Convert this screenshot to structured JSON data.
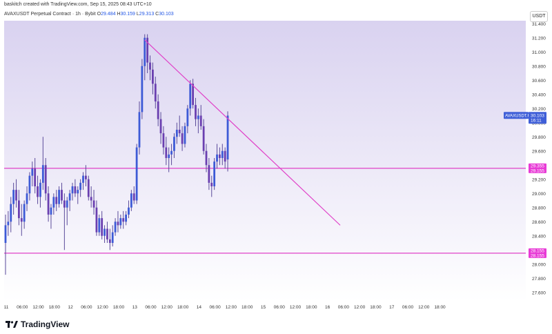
{
  "header": {
    "credit": "baskitch created with TradingView.com, Sep 15, 2025 08:43 UTC+10",
    "symbol": "AVAXUSDT Perpetual Contract · 1h · Bybit",
    "o_label": "O",
    "o_value": "29.484",
    "h_label": "H",
    "h_value": "30.159",
    "l_label": "L",
    "l_value": "29.313",
    "c_label": "C",
    "c_value": "30.103",
    "currency_button": "USDT"
  },
  "footer": {
    "logo_text": "TradingView",
    "logo_icon": "tradingview-logo-icon"
  },
  "colors": {
    "background_top": "#d9d2f0",
    "background_bottom": "#ffffff",
    "candle": "#3d5ad6",
    "wick": "#5a4a9a",
    "line": "#e040c8",
    "badge": "#e83ad6",
    "price_badge": "#3f5fd8"
  },
  "chart_data": {
    "type": "candlestick",
    "y_axis_side": "right",
    "ylim": [
      27.5,
      31.6
    ],
    "y_ticks": [
      "31.400",
      "31.200",
      "31.000",
      "30.800",
      "30.600",
      "30.400",
      "30.200",
      "30.000",
      "29.800",
      "29.600",
      "29.400",
      "29.200",
      "29.000",
      "28.800",
      "28.600",
      "28.400",
      "28.200",
      "28.000",
      "27.800",
      "27.600"
    ],
    "x_ticks": [
      "11",
      "06:00",
      "12:00",
      "18:00",
      "12",
      "06:00",
      "12:00",
      "18:00",
      "13",
      "06:00",
      "12:00",
      "18:00",
      "14",
      "06:00",
      "12:00",
      "18:00",
      "15",
      "06:00",
      "12:00",
      "18:00",
      "16",
      "06:00",
      "12:00",
      "18:00",
      "17",
      "06:00",
      "12:00",
      "18:00"
    ],
    "candles_ohlc": [
      [
        28.3,
        28.7,
        27.85,
        28.55
      ],
      [
        28.55,
        28.75,
        28.4,
        28.6
      ],
      [
        28.6,
        28.95,
        28.45,
        28.85
      ],
      [
        28.85,
        29.15,
        28.7,
        29.05
      ],
      [
        29.05,
        29.2,
        28.8,
        28.9
      ],
      [
        28.9,
        29.05,
        28.55,
        28.65
      ],
      [
        28.65,
        28.85,
        28.4,
        28.6
      ],
      [
        28.6,
        28.9,
        28.5,
        28.85
      ],
      [
        28.85,
        29.1,
        28.75,
        29.0
      ],
      [
        29.0,
        29.3,
        28.9,
        29.25
      ],
      [
        29.25,
        29.45,
        29.1,
        29.35
      ],
      [
        29.35,
        29.5,
        29.0,
        29.1
      ],
      [
        29.1,
        29.25,
        28.85,
        28.95
      ],
      [
        28.95,
        29.2,
        28.8,
        29.15
      ],
      [
        29.15,
        29.8,
        29.05,
        29.4
      ],
      [
        29.4,
        29.5,
        28.9,
        29.0
      ],
      [
        29.0,
        29.1,
        28.6,
        28.7
      ],
      [
        28.7,
        28.85,
        28.5,
        28.8
      ],
      [
        28.8,
        29.0,
        28.7,
        28.95
      ],
      [
        28.95,
        29.05,
        28.75,
        28.85
      ],
      [
        28.85,
        29.1,
        28.8,
        29.05
      ],
      [
        29.05,
        29.15,
        28.85,
        28.9
      ],
      [
        28.9,
        29.0,
        28.2,
        28.8
      ],
      [
        28.8,
        28.95,
        28.55,
        28.9
      ],
      [
        28.9,
        29.05,
        28.75,
        29.0
      ],
      [
        29.0,
        29.15,
        28.9,
        29.1
      ],
      [
        29.1,
        29.2,
        28.95,
        29.0
      ],
      [
        29.0,
        29.1,
        28.85,
        29.05
      ],
      [
        29.05,
        29.2,
        28.95,
        29.15
      ],
      [
        29.15,
        29.3,
        29.05,
        29.25
      ],
      [
        29.25,
        29.4,
        29.1,
        29.2
      ],
      [
        29.2,
        29.25,
        28.9,
        28.95
      ],
      [
        28.95,
        29.1,
        28.8,
        28.9
      ],
      [
        28.9,
        29.05,
        28.7,
        28.8
      ],
      [
        28.8,
        28.9,
        28.4,
        28.45
      ],
      [
        28.45,
        28.7,
        28.4,
        28.65
      ],
      [
        28.65,
        28.75,
        28.35,
        28.4
      ],
      [
        28.4,
        28.55,
        28.3,
        28.5
      ],
      [
        28.5,
        28.6,
        28.3,
        28.35
      ],
      [
        28.35,
        28.5,
        28.2,
        28.3
      ],
      [
        28.3,
        28.55,
        28.25,
        28.45
      ],
      [
        28.45,
        28.65,
        28.4,
        28.6
      ],
      [
        28.6,
        28.75,
        28.45,
        28.55
      ],
      [
        28.55,
        28.7,
        28.5,
        28.65
      ],
      [
        28.65,
        28.75,
        28.5,
        28.6
      ],
      [
        28.6,
        28.75,
        28.55,
        28.7
      ],
      [
        28.7,
        28.9,
        28.65,
        28.8
      ],
      [
        28.8,
        29.05,
        28.75,
        29.0
      ],
      [
        29.0,
        29.1,
        28.85,
        28.9
      ],
      [
        28.9,
        29.7,
        28.85,
        29.65
      ],
      [
        29.65,
        30.3,
        29.55,
        30.15
      ],
      [
        30.15,
        30.9,
        30.05,
        30.8
      ],
      [
        30.8,
        31.25,
        30.6,
        31.2
      ],
      [
        31.2,
        31.25,
        30.7,
        30.85
      ],
      [
        30.85,
        30.95,
        30.6,
        30.75
      ],
      [
        30.75,
        30.85,
        30.4,
        30.55
      ],
      [
        30.55,
        30.65,
        30.2,
        30.3
      ],
      [
        30.3,
        30.4,
        29.95,
        30.05
      ],
      [
        30.05,
        30.15,
        29.7,
        29.85
      ],
      [
        29.85,
        29.95,
        29.55,
        29.65
      ],
      [
        29.65,
        29.8,
        29.4,
        29.5
      ],
      [
        29.5,
        29.65,
        29.3,
        29.55
      ],
      [
        29.55,
        29.7,
        29.4,
        29.6
      ],
      [
        29.6,
        29.85,
        29.5,
        29.8
      ],
      [
        29.8,
        30.0,
        29.7,
        29.9
      ],
      [
        29.9,
        30.1,
        29.8,
        29.85
      ],
      [
        29.85,
        29.95,
        29.6,
        29.7
      ],
      [
        29.7,
        30.0,
        29.65,
        29.95
      ],
      [
        29.95,
        30.25,
        29.85,
        30.2
      ],
      [
        30.2,
        30.6,
        30.1,
        30.55
      ],
      [
        30.55,
        30.62,
        30.2,
        30.25
      ],
      [
        30.25,
        30.35,
        29.95,
        30.05
      ],
      [
        30.05,
        30.2,
        29.85,
        30.1
      ],
      [
        30.1,
        30.25,
        29.9,
        29.95
      ],
      [
        29.95,
        30.05,
        29.55,
        29.6
      ],
      [
        29.6,
        29.7,
        29.3,
        29.4
      ],
      [
        29.4,
        29.5,
        29.05,
        29.15
      ],
      [
        29.15,
        29.25,
        28.95,
        29.1
      ],
      [
        29.1,
        29.5,
        29.05,
        29.45
      ],
      [
        29.45,
        29.7,
        29.35,
        29.55
      ],
      [
        29.55,
        29.65,
        29.4,
        29.5
      ],
      [
        29.5,
        29.7,
        29.4,
        29.6
      ],
      [
        29.6,
        29.65,
        29.35,
        29.45
      ],
      [
        29.48,
        30.16,
        29.31,
        30.1
      ]
    ],
    "trendline": {
      "start_index": 52,
      "start_price": 31.17,
      "end_index": 125,
      "end_price": 28.55
    },
    "horizontal_levels": [
      29.355,
      28.155
    ],
    "level_badges": [
      {
        "top": "29.355",
        "bottom": "29.155"
      },
      {
        "top": "28.155",
        "bottom": "28.155"
      }
    ],
    "price_badge": {
      "symbol": "AVAXUSDT.P",
      "price": "30.103",
      "countdown": "16:11"
    }
  }
}
